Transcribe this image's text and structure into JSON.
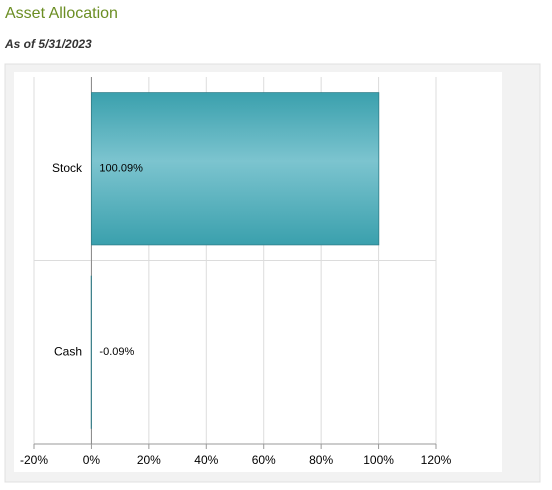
{
  "chart_data": {
    "type": "bar",
    "orientation": "horizontal",
    "title": "Asset Allocation",
    "subtitle": "As of 5/31/2023",
    "categories": [
      "Stock",
      "Cash"
    ],
    "values": [
      100.09,
      -0.09
    ],
    "value_labels": [
      "100.09%",
      "-0.09%"
    ],
    "color": "#3aa0ad",
    "xlim": [
      -20,
      120
    ],
    "xticks": [
      {
        "value": -20,
        "label": "-20%"
      },
      {
        "value": 0,
        "label": "0%"
      },
      {
        "value": 20,
        "label": "20%"
      },
      {
        "value": 40,
        "label": "40%"
      },
      {
        "value": 60,
        "label": "60%"
      },
      {
        "value": 80,
        "label": "80%"
      },
      {
        "value": 100,
        "label": "100%"
      },
      {
        "value": 120,
        "label": "120%"
      }
    ],
    "grid": true
  }
}
